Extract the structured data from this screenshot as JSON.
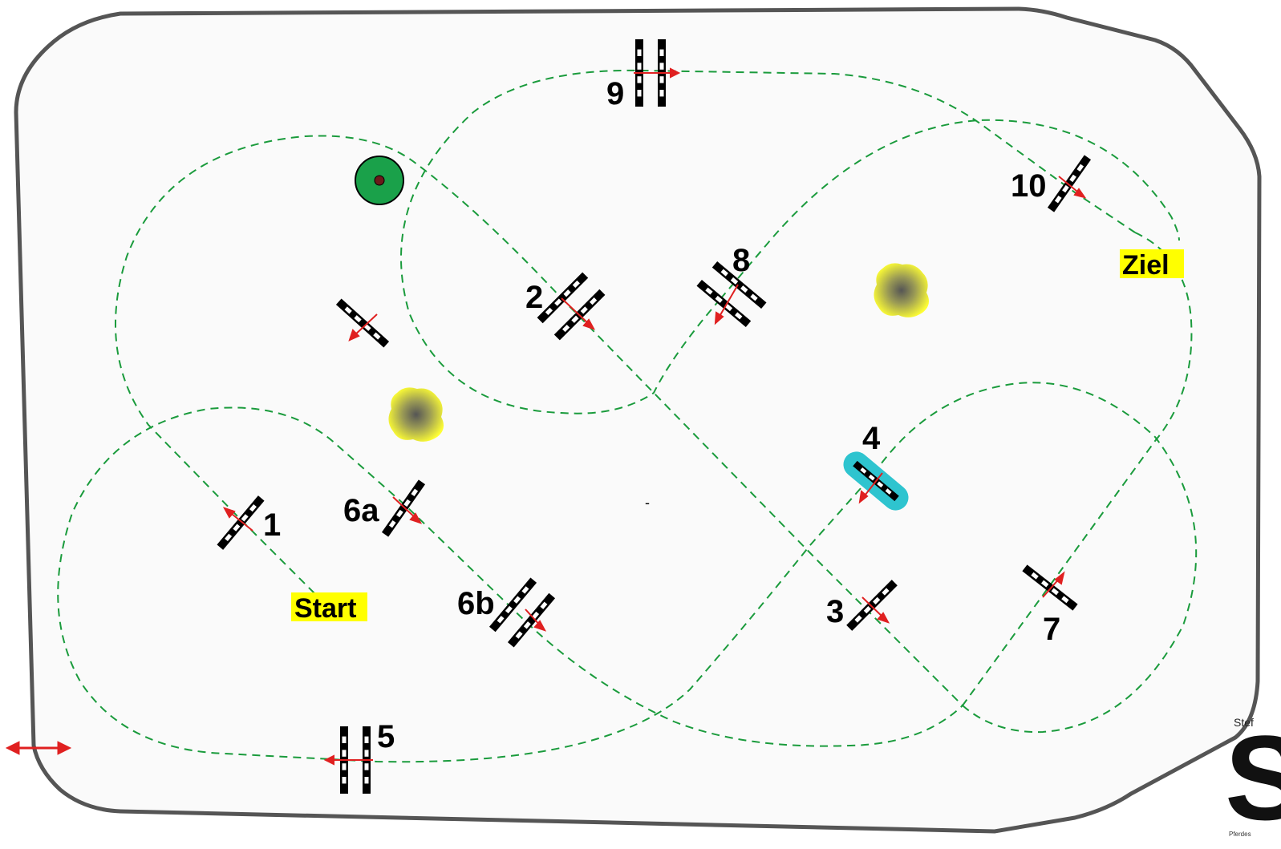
{
  "labels": {
    "start": "Start",
    "ziel": "Ziel",
    "dash": "-"
  },
  "obstacles": [
    {
      "id": "1",
      "label": "1"
    },
    {
      "id": "2",
      "label": "2"
    },
    {
      "id": "3",
      "label": "3"
    },
    {
      "id": "4",
      "label": "4"
    },
    {
      "id": "5",
      "label": "5"
    },
    {
      "id": "6a",
      "label": "6a"
    },
    {
      "id": "6b",
      "label": "6b"
    },
    {
      "id": "7",
      "label": "7"
    },
    {
      "id": "8",
      "label": "8"
    },
    {
      "id": "9",
      "label": "9"
    },
    {
      "id": "10",
      "label": "10"
    }
  ],
  "logo": {
    "top_text": "Stef",
    "big_letter": "S",
    "bottom_text": "Pferdes"
  },
  "colors": {
    "arena_border": "#555555",
    "route": "#1a9b3c",
    "label_bg": "#ffff00",
    "water": "#2ec4cf",
    "bush": "#ffff33",
    "direction_arrow": "#e02020"
  }
}
